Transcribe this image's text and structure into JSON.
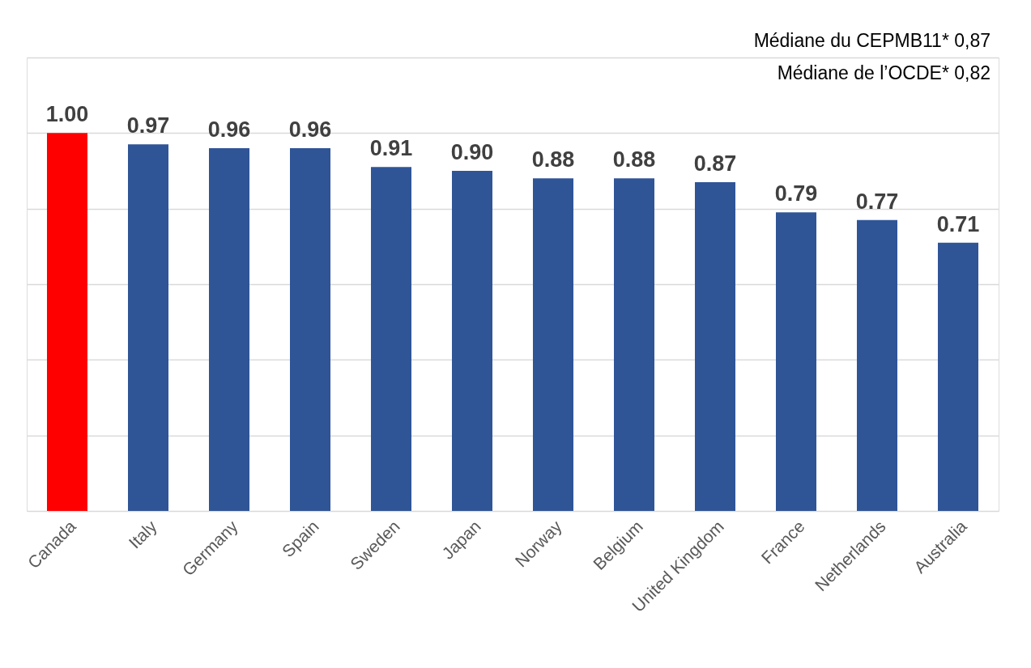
{
  "chart_data": {
    "type": "bar",
    "categories": [
      "Canada",
      "Italy",
      "Germany",
      "Spain",
      "Sweden",
      "Japan",
      "Norway",
      "Belgium",
      "United Kingdom",
      "France",
      "Netherlands",
      "Australia"
    ],
    "values": [
      1.0,
      0.97,
      0.96,
      0.96,
      0.91,
      0.9,
      0.88,
      0.88,
      0.87,
      0.79,
      0.77,
      0.71
    ],
    "colors": [
      "#ff0000",
      "#2f5597",
      "#2f5597",
      "#2f5597",
      "#2f5597",
      "#2f5597",
      "#2f5597",
      "#2f5597",
      "#2f5597",
      "#2f5597",
      "#2f5597",
      "#2f5597"
    ],
    "ylim": [
      0,
      1.2
    ],
    "yticks": [
      {
        "value": 0,
        "label": null
      },
      {
        "value": 0.2,
        "label": null
      },
      {
        "value": 0.4,
        "label": null
      },
      {
        "value": 0.6,
        "label": null
      },
      {
        "value": 0.8,
        "label": null
      },
      {
        "value": 1.0,
        "label": null
      },
      {
        "value": 1.2,
        "label": null
      }
    ],
    "tick_labels": "x",
    "grid": "y",
    "value_labels": [
      "1.00",
      "0.97",
      "0.96",
      "0.96",
      "0.91",
      "0.90",
      "0.88",
      "0.88",
      "0.87",
      "0.79",
      "0.77",
      "0.71"
    ],
    "annotations": [
      "Médiane du CEPMB11* 0,87",
      "Médiane de l’OCDE*      0,82"
    ]
  }
}
